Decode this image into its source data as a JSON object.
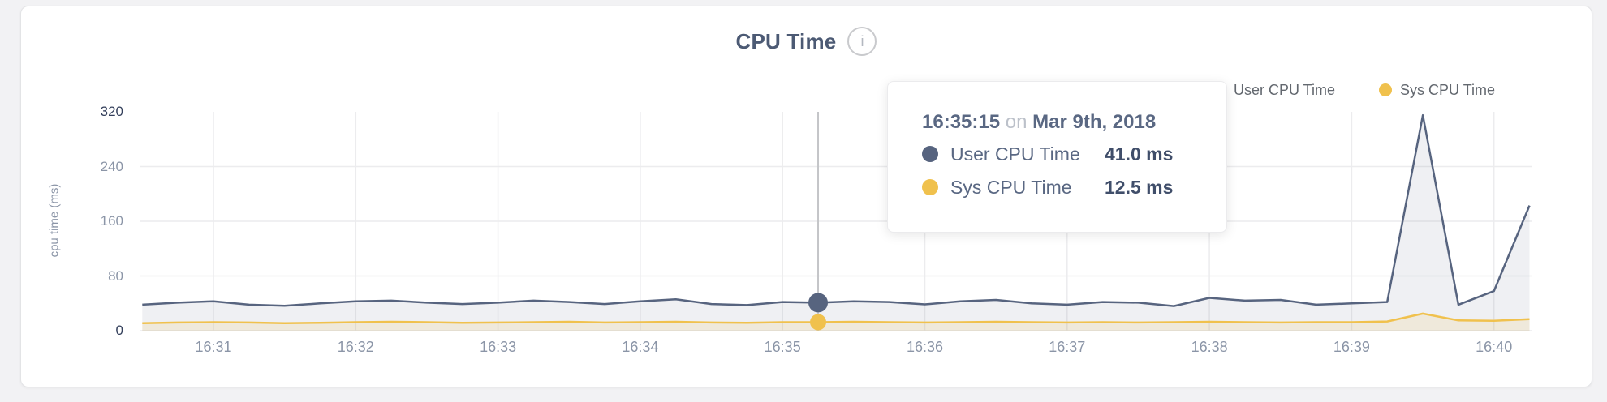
{
  "title": "CPU Time",
  "info_icon": "i",
  "legend": {
    "items": [
      {
        "label": "User CPU Time",
        "color": "#57647f"
      },
      {
        "label": "Sys CPU Time",
        "color": "#f0c14d"
      }
    ]
  },
  "tooltip": {
    "time": "16:35:15",
    "connector": "on",
    "date": "Mar 9th, 2018",
    "rows": [
      {
        "label": "User CPU Time",
        "value": "41.0 ms",
        "color": "#57647f"
      },
      {
        "label": "Sys CPU Time",
        "value": "12.5 ms",
        "color": "#f0c14d"
      }
    ]
  },
  "colors": {
    "page_bg": "#f2f2f4",
    "card_bg": "#ffffff",
    "card_border": "#e3e4e6",
    "title": "#4c5a74",
    "grid": "#ececee",
    "hover_line": "#c4c5c8",
    "axis_muted": "#8b95a7",
    "axis_strong": "#333f5b",
    "legend_text": "#63686f",
    "tooltip_text": "#5a6883",
    "tooltip_muted": "#bcc1ca",
    "tooltip_value": "#404e6a",
    "user_fill": "rgba(99,112,140,0.10)",
    "sys_fill": "rgba(240,193,77,0.14)"
  },
  "chart_data": {
    "type": "area",
    "title": "CPU Time",
    "ylabel": "cpu time (ms)",
    "ylim": [
      0,
      320
    ],
    "yticks": [
      320,
      240,
      160,
      80,
      0
    ],
    "ytick_emphasis": [
      320,
      0
    ],
    "xticks": [
      "16:31",
      "16:32",
      "16:33",
      "16:34",
      "16:35",
      "16:36",
      "16:37",
      "16:38",
      "16:39",
      "16:40"
    ],
    "x_start": "16:30:30",
    "x_end": "16:40:15",
    "x_step_seconds": 15,
    "grid": true,
    "legend_position": "top-right",
    "units": "ms",
    "hover": {
      "index": 19,
      "time": "16:35:15",
      "date": "Mar 9th, 2018",
      "values": {
        "User CPU Time": 41.0,
        "Sys CPU Time": 12.5
      }
    },
    "series": [
      {
        "name": "User CPU Time",
        "color": "#57647f",
        "values": [
          38,
          41,
          43,
          38,
          36.5,
          40,
          43,
          44,
          41,
          39,
          41,
          44,
          42,
          39,
          43,
          46,
          39,
          37.5,
          42,
          41,
          43,
          42,
          38.5,
          43,
          45,
          40,
          38,
          42,
          41,
          36,
          48,
          44,
          45,
          38,
          40,
          42,
          315,
          38,
          58,
          183
        ]
      },
      {
        "name": "Sys CPU Time",
        "color": "#f0c14d",
        "values": [
          11,
          12,
          12.5,
          12,
          11,
          11.5,
          12.5,
          13,
          12.5,
          11.5,
          12,
          12.5,
          13,
          12,
          12.5,
          13,
          12,
          11.5,
          12.5,
          12.5,
          13,
          12.5,
          12,
          12.5,
          13,
          12.5,
          12,
          12.5,
          12,
          12.5,
          13,
          12.5,
          12,
          12.5,
          12.5,
          13.5,
          25,
          15,
          14.5,
          17
        ]
      }
    ]
  }
}
